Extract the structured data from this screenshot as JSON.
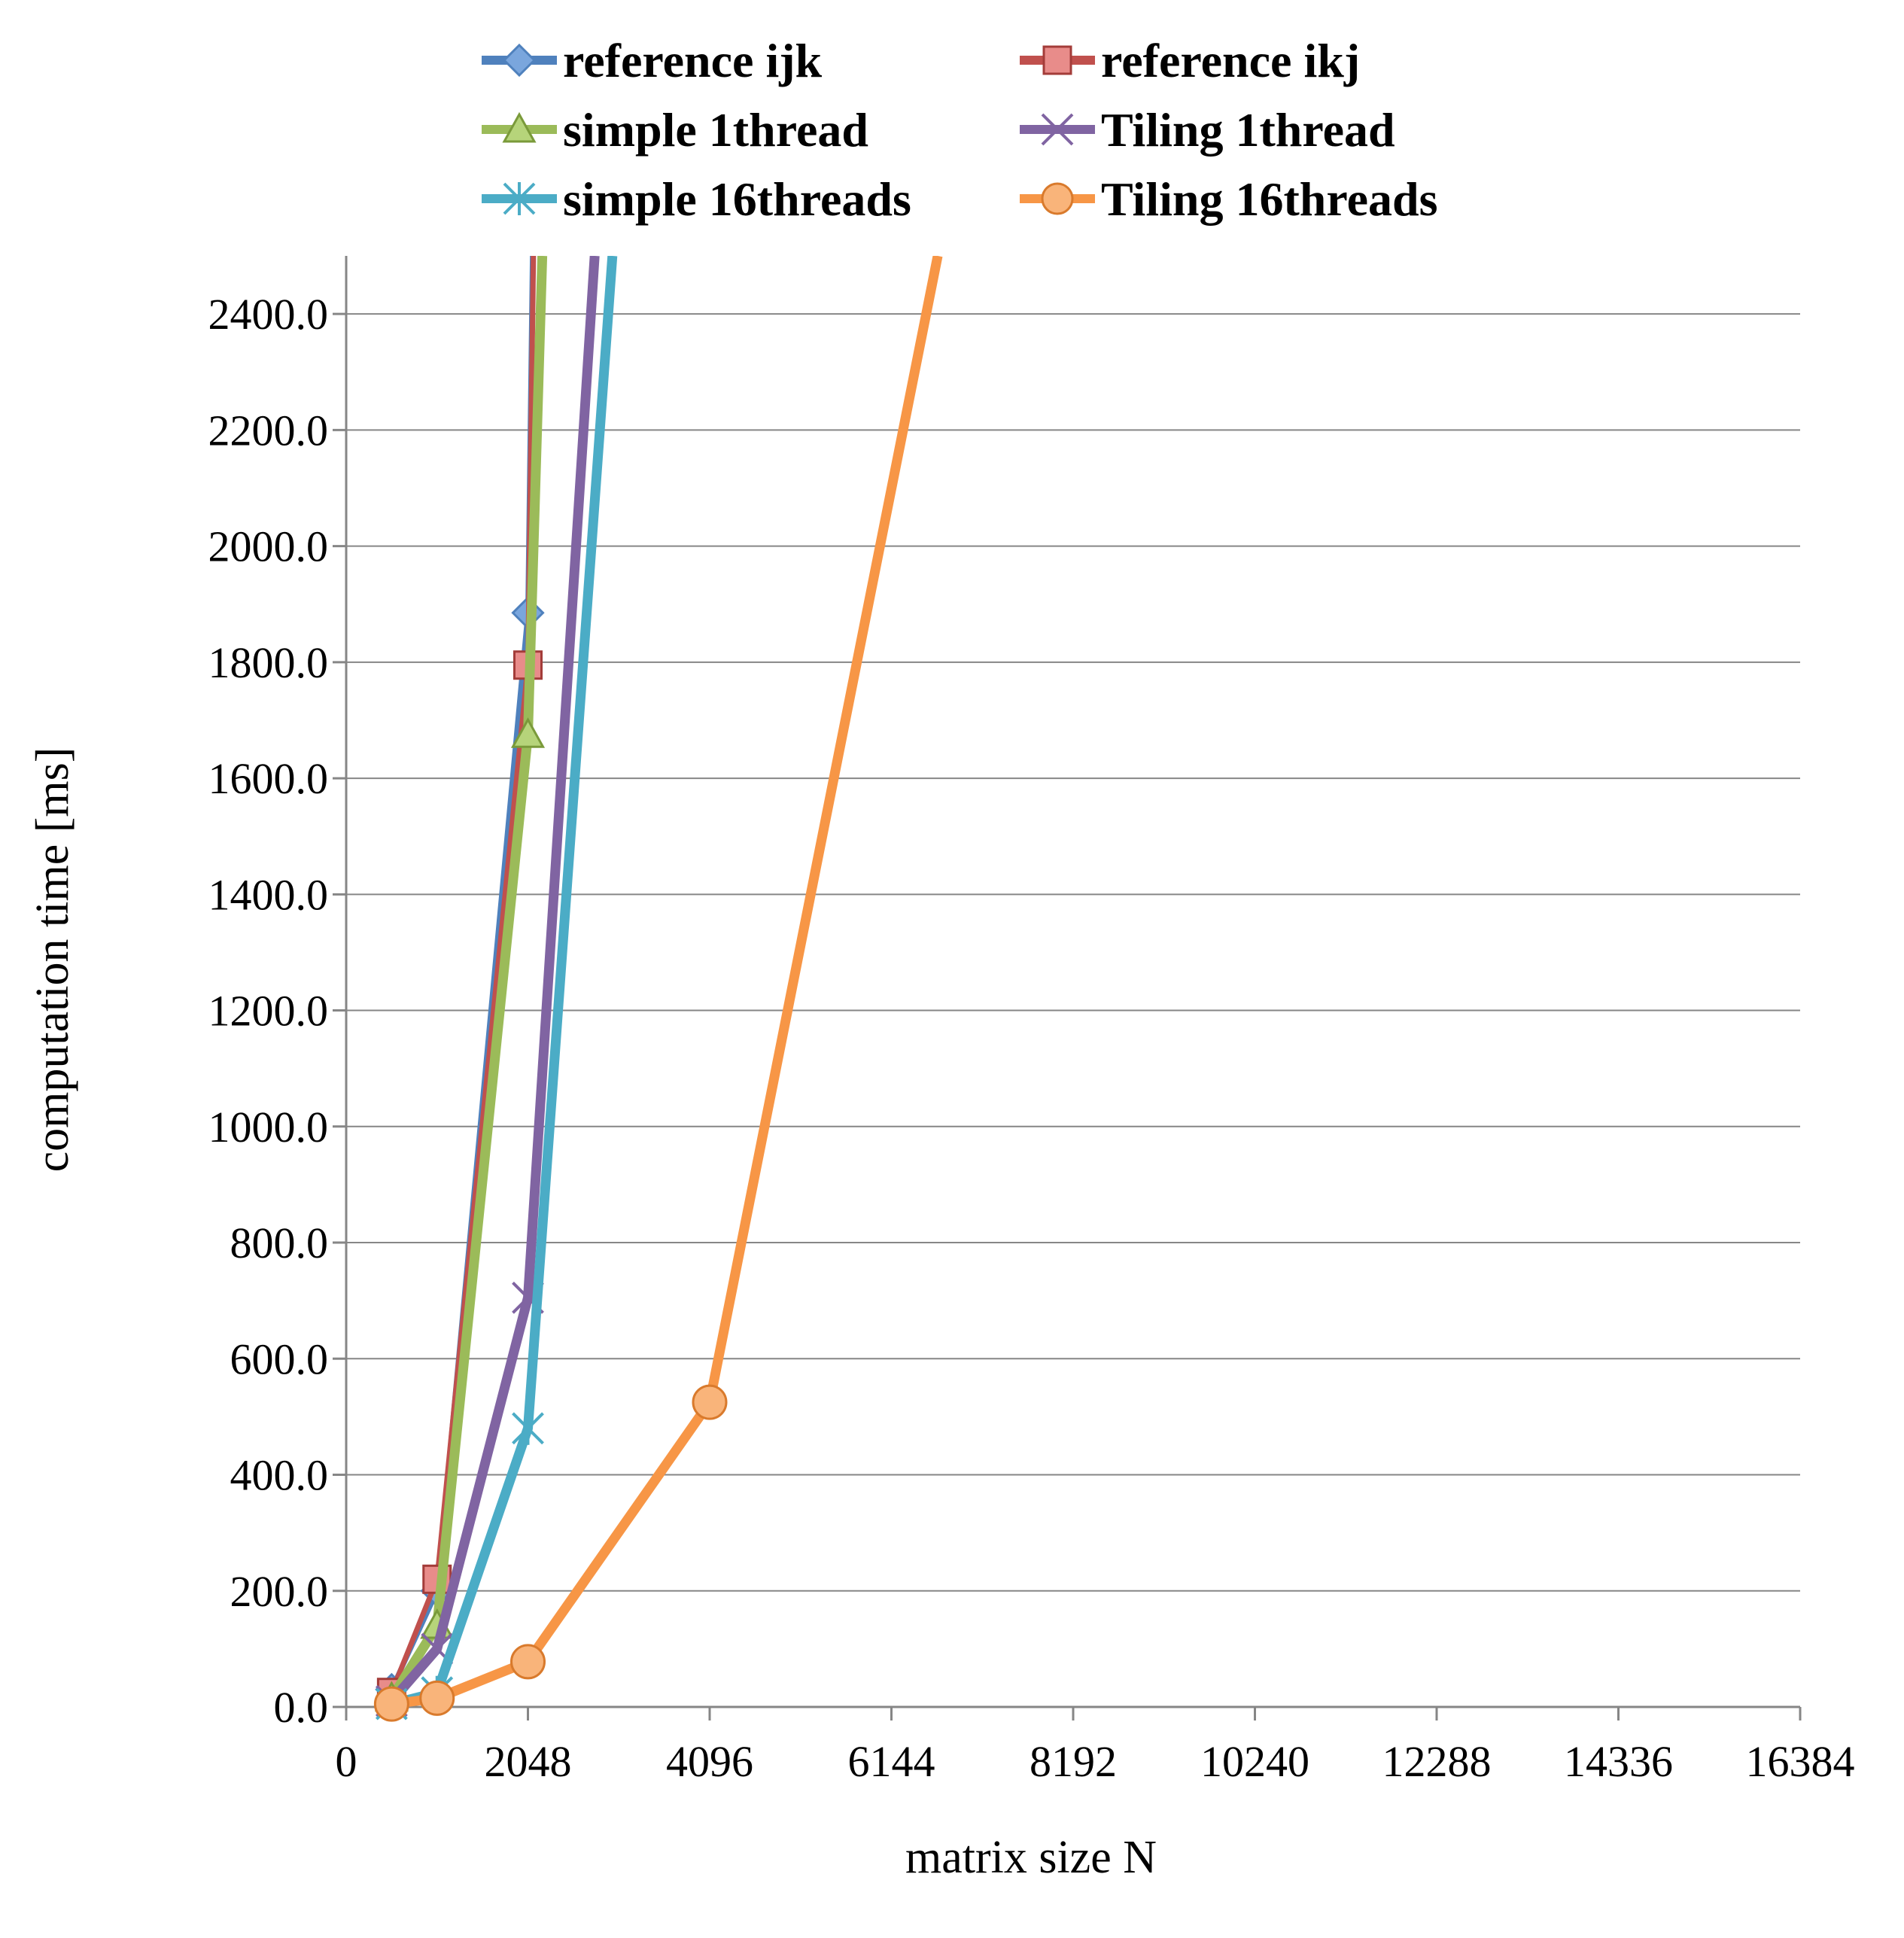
{
  "chart_data": {
    "type": "line",
    "xlabel": "matrix size N",
    "ylabel": "computation time [ms]",
    "xlim": [
      0,
      16384
    ],
    "ylim": [
      0,
      2500
    ],
    "x_ticks": [
      "0",
      "2048",
      "4096",
      "6144",
      "8192",
      "10240",
      "12288",
      "14336",
      "16384"
    ],
    "y_ticks": [
      "0.0",
      "200.0",
      "400.0",
      "600.0",
      "800.0",
      "1000.0",
      "1200.0",
      "1400.0",
      "1600.0",
      "1800.0",
      "2000.0",
      "2200.0",
      "2400.0"
    ],
    "grid": "horizontal",
    "legend_position": "top",
    "series": [
      {
        "name": "reference ijk",
        "color": "#4f81bd",
        "marker": "diamond",
        "points": [
          [
            512,
            30
          ],
          [
            1024,
            200
          ],
          [
            2048,
            1885
          ],
          [
            2100,
            2500
          ]
        ]
      },
      {
        "name": "reference ikj",
        "color": "#c0504d",
        "marker": "square",
        "points": [
          [
            512,
            25
          ],
          [
            1024,
            220
          ],
          [
            2048,
            1795
          ],
          [
            2110,
            2500
          ]
        ]
      },
      {
        "name": "simple 1thread",
        "color": "#9bbb59",
        "marker": "triangle",
        "points": [
          [
            512,
            15
          ],
          [
            1024,
            140
          ],
          [
            2048,
            1675
          ],
          [
            2210,
            2500
          ]
        ]
      },
      {
        "name": "Tiling 1thread",
        "color": "#8064a2",
        "marker": "x",
        "points": [
          [
            512,
            10
          ],
          [
            1024,
            100
          ],
          [
            2048,
            705
          ],
          [
            2800,
            2500
          ]
        ]
      },
      {
        "name": "simple 16threads",
        "color": "#4bacc6",
        "marker": "star",
        "points": [
          [
            512,
            5
          ],
          [
            1024,
            25
          ],
          [
            2048,
            480
          ],
          [
            3000,
            2500
          ]
        ]
      },
      {
        "name": "Tiling 16threads",
        "color": "#f79646",
        "marker": "circle",
        "points": [
          [
            512,
            5
          ],
          [
            1024,
            15
          ],
          [
            2048,
            78
          ],
          [
            4096,
            525
          ],
          [
            6666,
            2500
          ]
        ]
      }
    ]
  }
}
